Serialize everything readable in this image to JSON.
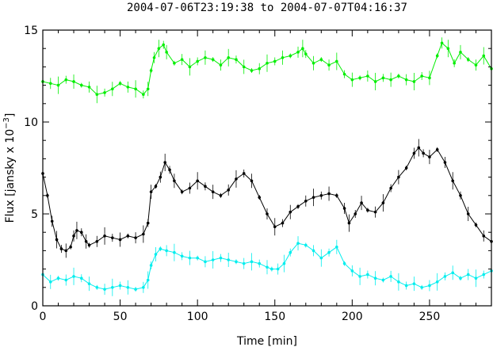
{
  "chart_data": {
    "type": "scatter",
    "title": "2004-07-06T23:19:38 to 2004-07-07T04:16:37",
    "xlabel": "Time [min]",
    "ylabel_prefix": "Flux [jansky x 10",
    "ylabel_exp": "−3",
    "ylabel_suffix": "]",
    "xlim": [
      0,
      290
    ],
    "ylim": [
      0,
      15
    ],
    "x_ticks": [
      0,
      50,
      100,
      150,
      200,
      250
    ],
    "x_tick_labels": [
      "0",
      "50",
      "100",
      "150",
      "200",
      "250"
    ],
    "y_ticks": [
      0,
      5,
      10,
      15
    ],
    "y_tick_labels": [
      "0",
      "5",
      "10",
      "15"
    ],
    "grid": false,
    "series": [
      {
        "color": "#00ee00",
        "error_bars": true,
        "x": [
          0,
          5,
          10,
          15,
          20,
          25,
          30,
          35,
          40,
          45,
          50,
          55,
          60,
          65,
          68,
          70,
          72,
          75,
          78,
          80,
          85,
          90,
          95,
          100,
          105,
          110,
          115,
          120,
          125,
          130,
          135,
          140,
          145,
          150,
          155,
          160,
          165,
          168,
          170,
          175,
          180,
          185,
          190,
          195,
          200,
          205,
          210,
          215,
          220,
          225,
          230,
          235,
          240,
          245,
          250,
          255,
          258,
          262,
          266,
          270,
          275,
          280,
          285,
          290
        ],
        "y": [
          12.2,
          12.1,
          12.0,
          12.3,
          12.2,
          12.0,
          11.9,
          11.5,
          11.6,
          11.8,
          12.1,
          11.9,
          11.8,
          11.5,
          11.8,
          12.8,
          13.5,
          14.0,
          14.2,
          13.8,
          13.2,
          13.4,
          13.0,
          13.3,
          13.5,
          13.4,
          13.1,
          13.5,
          13.4,
          13.0,
          12.8,
          12.9,
          13.2,
          13.3,
          13.5,
          13.6,
          13.8,
          14.0,
          13.7,
          13.2,
          13.4,
          13.1,
          13.3,
          12.6,
          12.3,
          12.4,
          12.5,
          12.2,
          12.4,
          12.3,
          12.5,
          12.3,
          12.2,
          12.5,
          12.4,
          13.6,
          14.3,
          14.0,
          13.2,
          13.8,
          13.4,
          13.1,
          13.6,
          12.9
        ]
      },
      {
        "color": "#000000",
        "error_bars": true,
        "x": [
          0,
          3,
          6,
          9,
          12,
          15,
          18,
          20,
          22,
          25,
          28,
          30,
          35,
          40,
          45,
          50,
          55,
          60,
          65,
          68,
          70,
          73,
          76,
          79,
          82,
          85,
          90,
          95,
          100,
          105,
          110,
          115,
          120,
          125,
          130,
          135,
          140,
          145,
          150,
          155,
          160,
          165,
          170,
          175,
          180,
          185,
          190,
          195,
          198,
          202,
          206,
          210,
          215,
          220,
          225,
          230,
          235,
          240,
          243,
          246,
          250,
          255,
          260,
          265,
          270,
          275,
          280,
          285,
          290
        ],
        "y": [
          7.2,
          6.0,
          4.6,
          3.6,
          3.1,
          3.0,
          3.2,
          3.8,
          4.1,
          4.0,
          3.5,
          3.3,
          3.5,
          3.8,
          3.7,
          3.6,
          3.8,
          3.7,
          3.9,
          4.5,
          6.2,
          6.5,
          7.0,
          7.8,
          7.4,
          6.8,
          6.2,
          6.4,
          6.8,
          6.5,
          6.2,
          6.0,
          6.3,
          6.9,
          7.2,
          6.8,
          5.9,
          5.0,
          4.3,
          4.5,
          5.1,
          5.4,
          5.7,
          5.9,
          6.0,
          6.1,
          6.0,
          5.3,
          4.5,
          5.0,
          5.6,
          5.2,
          5.1,
          5.6,
          6.4,
          7.0,
          7.5,
          8.3,
          8.6,
          8.3,
          8.1,
          8.5,
          7.8,
          6.8,
          6.0,
          5.0,
          4.4,
          3.8,
          3.5
        ]
      },
      {
        "color": "#00eeee",
        "error_bars": true,
        "x": [
          0,
          5,
          10,
          15,
          20,
          25,
          30,
          35,
          40,
          45,
          50,
          55,
          60,
          65,
          68,
          70,
          73,
          76,
          80,
          85,
          90,
          95,
          100,
          105,
          110,
          115,
          120,
          125,
          130,
          135,
          140,
          145,
          148,
          152,
          156,
          160,
          165,
          170,
          175,
          180,
          185,
          190,
          195,
          200,
          205,
          210,
          215,
          220,
          225,
          230,
          235,
          240,
          245,
          250,
          255,
          260,
          265,
          270,
          275,
          280,
          285,
          290
        ],
        "y": [
          1.7,
          1.3,
          1.5,
          1.4,
          1.6,
          1.5,
          1.2,
          1.0,
          0.9,
          1.0,
          1.1,
          1.0,
          0.9,
          1.0,
          1.4,
          2.2,
          2.8,
          3.1,
          3.0,
          2.9,
          2.7,
          2.6,
          2.6,
          2.4,
          2.5,
          2.6,
          2.5,
          2.4,
          2.3,
          2.4,
          2.3,
          2.1,
          2.0,
          2.0,
          2.3,
          2.9,
          3.4,
          3.3,
          3.0,
          2.6,
          2.9,
          3.2,
          2.3,
          1.9,
          1.6,
          1.7,
          1.5,
          1.4,
          1.6,
          1.3,
          1.1,
          1.2,
          1.0,
          1.1,
          1.3,
          1.6,
          1.8,
          1.5,
          1.7,
          1.5,
          1.7,
          1.9
        ]
      }
    ]
  }
}
